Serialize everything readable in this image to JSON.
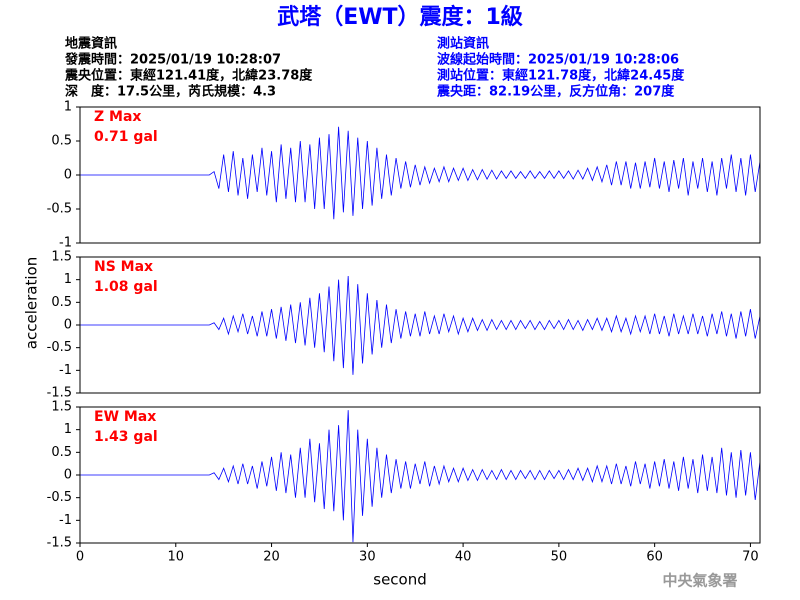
{
  "header": {
    "title": "武塔（EWT）震度：1級",
    "left": [
      "地震資訊",
      "發震時間：2025/01/19 10:28:07",
      "震央位置：東經121.41度，北緯23.78度",
      "深　度：17.5公里，芮氏規模：4.3"
    ],
    "right": [
      "測站資訊",
      "波線起始時間：2025/01/19 10:28:06",
      "測站位置：東經121.78度，北緯24.45度",
      "震央距：82.19公里，反方位角：207度"
    ]
  },
  "footer": "中央氣象署",
  "chart_data": [
    {
      "type": "line",
      "annotation": [
        "Z Max",
        "0.71 gal"
      ],
      "color": "#0000ff",
      "xlim": [
        0,
        71
      ],
      "ylim": [
        -1,
        1
      ],
      "yticks": [
        -1,
        -0.5,
        0,
        0.5,
        1
      ],
      "x": [
        0,
        0.5,
        1,
        1.5,
        2,
        2.5,
        3,
        3.5,
        4,
        4.5,
        5,
        5.5,
        6,
        6.5,
        7,
        7.5,
        8,
        8.5,
        9,
        9.5,
        10,
        10.5,
        11,
        11.5,
        12,
        12.5,
        13,
        13.5,
        14,
        14.5,
        15,
        15.5,
        16,
        16.5,
        17,
        17.5,
        18,
        18.5,
        19,
        19.5,
        20,
        20.5,
        21,
        21.5,
        22,
        22.5,
        23,
        23.5,
        24,
        24.5,
        25,
        25.5,
        26,
        26.5,
        27,
        27.5,
        28,
        28.5,
        29,
        29.5,
        30,
        30.5,
        31,
        31.5,
        32,
        32.5,
        33,
        33.5,
        34,
        34.5,
        35,
        35.5,
        36,
        36.5,
        37,
        37.5,
        38,
        38.5,
        39,
        39.5,
        40,
        40.5,
        41,
        41.5,
        42,
        42.5,
        43,
        43.5,
        44,
        44.5,
        45,
        45.5,
        46,
        46.5,
        47,
        47.5,
        48,
        48.5,
        49,
        49.5,
        50,
        50.5,
        51,
        51.5,
        52,
        52.5,
        53,
        53.5,
        54,
        54.5,
        55,
        55.5,
        56,
        56.5,
        57,
        57.5,
        58,
        58.5,
        59,
        59.5,
        60,
        60.5,
        61,
        61.5,
        62,
        62.5,
        63,
        63.5,
        64,
        64.5,
        65,
        65.5,
        66,
        66.5,
        67,
        67.5,
        68,
        68.5,
        69,
        69.5,
        70,
        70.5,
        71
      ],
      "values": [
        0,
        0,
        0,
        0,
        0,
        0,
        0,
        0,
        0,
        0,
        0,
        0,
        0,
        0,
        0,
        0,
        0,
        0,
        0,
        0,
        0,
        0,
        0,
        0,
        0,
        0,
        0,
        0,
        0.05,
        -0.2,
        0.3,
        -0.25,
        0.35,
        -0.3,
        0.25,
        -0.35,
        0.3,
        -0.25,
        0.4,
        -0.3,
        0.35,
        -0.4,
        0.45,
        -0.35,
        0.4,
        -0.4,
        0.5,
        -0.4,
        0.45,
        -0.5,
        0.55,
        -0.5,
        0.6,
        -0.65,
        0.71,
        -0.55,
        0.65,
        -0.6,
        0.55,
        -0.5,
        0.5,
        -0.45,
        0.4,
        -0.35,
        0.3,
        -0.3,
        0.25,
        -0.2,
        0.2,
        -0.18,
        0.15,
        -0.15,
        0.12,
        -0.12,
        0.1,
        -0.1,
        0.12,
        -0.1,
        0.1,
        -0.08,
        0.1,
        -0.08,
        0.08,
        -0.07,
        0.08,
        -0.06,
        0.07,
        -0.06,
        0.06,
        -0.05,
        0.06,
        -0.05,
        0.05,
        -0.05,
        0.06,
        -0.05,
        0.05,
        -0.05,
        0.06,
        -0.05,
        0.06,
        -0.05,
        0.06,
        -0.06,
        0.07,
        -0.06,
        0.1,
        -0.08,
        0.12,
        -0.1,
        0.15,
        -0.15,
        0.2,
        -0.15,
        0.2,
        -0.2,
        0.18,
        -0.2,
        0.2,
        -0.18,
        0.25,
        -0.2,
        0.2,
        -0.25,
        0.22,
        -0.2,
        0.25,
        -0.3,
        0.2,
        -0.2,
        0.25,
        -0.25,
        0.2,
        -0.3,
        0.25,
        -0.2,
        0.3,
        -0.25,
        0.25,
        -0.3,
        0.3,
        -0.25,
        0.2
      ]
    },
    {
      "type": "line",
      "annotation": [
        "NS Max",
        "1.08 gal"
      ],
      "color": "#0000ff",
      "xlim": [
        0,
        71
      ],
      "ylim": [
        -1.5,
        1.5
      ],
      "yticks": [
        -1.5,
        -1,
        -0.5,
        0,
        0.5,
        1,
        1.5
      ],
      "ylabel": "acceleration",
      "x": [
        0,
        0.5,
        1,
        1.5,
        2,
        2.5,
        3,
        3.5,
        4,
        4.5,
        5,
        5.5,
        6,
        6.5,
        7,
        7.5,
        8,
        8.5,
        9,
        9.5,
        10,
        10.5,
        11,
        11.5,
        12,
        12.5,
        13,
        13.5,
        14,
        14.5,
        15,
        15.5,
        16,
        16.5,
        17,
        17.5,
        18,
        18.5,
        19,
        19.5,
        20,
        20.5,
        21,
        21.5,
        22,
        22.5,
        23,
        23.5,
        24,
        24.5,
        25,
        25.5,
        26,
        26.5,
        27,
        27.5,
        28,
        28.5,
        29,
        29.5,
        30,
        30.5,
        31,
        31.5,
        32,
        32.5,
        33,
        33.5,
        34,
        34.5,
        35,
        35.5,
        36,
        36.5,
        37,
        37.5,
        38,
        38.5,
        39,
        39.5,
        40,
        40.5,
        41,
        41.5,
        42,
        42.5,
        43,
        43.5,
        44,
        44.5,
        45,
        45.5,
        46,
        46.5,
        47,
        47.5,
        48,
        48.5,
        49,
        49.5,
        50,
        50.5,
        51,
        51.5,
        52,
        52.5,
        53,
        53.5,
        54,
        54.5,
        55,
        55.5,
        56,
        56.5,
        57,
        57.5,
        58,
        58.5,
        59,
        59.5,
        60,
        60.5,
        61,
        61.5,
        62,
        62.5,
        63,
        63.5,
        64,
        64.5,
        65,
        65.5,
        66,
        66.5,
        67,
        67.5,
        68,
        68.5,
        69,
        69.5,
        70,
        70.5,
        71
      ],
      "values": [
        0,
        0,
        0,
        0,
        0,
        0,
        0,
        0,
        0,
        0,
        0,
        0,
        0,
        0,
        0,
        0,
        0,
        0,
        0,
        0,
        0,
        0,
        0,
        0,
        0,
        0,
        0,
        0,
        0.05,
        -0.1,
        0.15,
        -0.2,
        0.2,
        -0.15,
        0.25,
        -0.2,
        0.2,
        -0.25,
        0.3,
        -0.25,
        0.35,
        -0.3,
        0.4,
        -0.35,
        0.45,
        -0.4,
        0.5,
        -0.45,
        0.6,
        -0.5,
        0.7,
        -0.6,
        0.85,
        -0.8,
        1.0,
        -0.95,
        1.08,
        -1.1,
        0.9,
        -0.85,
        0.7,
        -0.65,
        0.55,
        -0.5,
        0.45,
        -0.4,
        0.35,
        -0.3,
        0.3,
        -0.25,
        0.25,
        -0.25,
        0.3,
        -0.2,
        0.2,
        -0.2,
        0.25,
        -0.15,
        0.2,
        -0.2,
        0.15,
        -0.15,
        0.15,
        -0.12,
        0.12,
        -0.12,
        0.12,
        -0.1,
        0.1,
        -0.1,
        0.1,
        -0.1,
        0.1,
        -0.08,
        0.1,
        -0.1,
        0.08,
        -0.1,
        0.1,
        -0.08,
        0.1,
        -0.1,
        0.12,
        -0.1,
        0.1,
        -0.12,
        0.12,
        -0.1,
        0.15,
        -0.12,
        0.15,
        -0.15,
        0.2,
        -0.15,
        0.15,
        -0.2,
        0.2,
        -0.15,
        0.2,
        -0.2,
        0.25,
        -0.2,
        0.2,
        -0.25,
        0.25,
        -0.2,
        0.2,
        -0.2,
        0.25,
        -0.2,
        0.2,
        -0.25,
        0.25,
        -0.2,
        0.3,
        -0.25,
        0.25,
        -0.3,
        0.3,
        -0.25,
        0.35,
        -0.3,
        0.2
      ]
    },
    {
      "type": "line",
      "annotation": [
        "EW Max",
        "1.43 gal"
      ],
      "color": "#0000ff",
      "xlim": [
        0,
        71
      ],
      "ylim": [
        -1.5,
        1.5
      ],
      "yticks": [
        -1.5,
        -1,
        -0.5,
        0,
        0.5,
        1,
        1.5
      ],
      "xticks": [
        0,
        10,
        20,
        30,
        40,
        50,
        60,
        70
      ],
      "xlabel": "second",
      "x": [
        0,
        0.5,
        1,
        1.5,
        2,
        2.5,
        3,
        3.5,
        4,
        4.5,
        5,
        5.5,
        6,
        6.5,
        7,
        7.5,
        8,
        8.5,
        9,
        9.5,
        10,
        10.5,
        11,
        11.5,
        12,
        12.5,
        13,
        13.5,
        14,
        14.5,
        15,
        15.5,
        16,
        16.5,
        17,
        17.5,
        18,
        18.5,
        19,
        19.5,
        20,
        20.5,
        21,
        21.5,
        22,
        22.5,
        23,
        23.5,
        24,
        24.5,
        25,
        25.5,
        26,
        26.5,
        27,
        27.5,
        28,
        28.5,
        29,
        29.5,
        30,
        30.5,
        31,
        31.5,
        32,
        32.5,
        33,
        33.5,
        34,
        34.5,
        35,
        35.5,
        36,
        36.5,
        37,
        37.5,
        38,
        38.5,
        39,
        39.5,
        40,
        40.5,
        41,
        41.5,
        42,
        42.5,
        43,
        43.5,
        44,
        44.5,
        45,
        45.5,
        46,
        46.5,
        47,
        47.5,
        48,
        48.5,
        49,
        49.5,
        50,
        50.5,
        51,
        51.5,
        52,
        52.5,
        53,
        53.5,
        54,
        54.5,
        55,
        55.5,
        56,
        56.5,
        57,
        57.5,
        58,
        58.5,
        59,
        59.5,
        60,
        60.5,
        61,
        61.5,
        62,
        62.5,
        63,
        63.5,
        64,
        64.5,
        65,
        65.5,
        66,
        66.5,
        67,
        67.5,
        68,
        68.5,
        69,
        69.5,
        70,
        70.5,
        71
      ],
      "values": [
        0,
        0,
        0,
        0,
        0,
        0,
        0,
        0,
        0,
        0,
        0,
        0,
        0,
        0,
        0,
        0,
        0,
        0,
        0,
        0,
        0,
        0,
        0,
        0,
        0,
        0,
        0,
        0,
        0.05,
        -0.1,
        0.15,
        -0.15,
        0.2,
        -0.2,
        0.25,
        -0.2,
        0.2,
        -0.3,
        0.3,
        -0.25,
        0.4,
        -0.35,
        0.5,
        -0.4,
        0.45,
        -0.5,
        0.6,
        -0.5,
        0.8,
        -0.6,
        0.7,
        -0.75,
        1.0,
        -0.8,
        1.1,
        -1.0,
        1.43,
        -1.48,
        1.0,
        -0.9,
        0.8,
        -0.7,
        0.6,
        -0.5,
        0.45,
        -0.4,
        0.35,
        -0.3,
        0.3,
        -0.3,
        0.25,
        -0.2,
        0.3,
        -0.25,
        0.2,
        -0.2,
        0.2,
        -0.15,
        0.15,
        -0.15,
        0.15,
        -0.12,
        0.12,
        -0.12,
        0.12,
        -0.1,
        0.1,
        -0.1,
        0.12,
        -0.1,
        0.1,
        -0.1,
        0.1,
        -0.08,
        0.1,
        -0.1,
        0.1,
        -0.1,
        0.1,
        -0.08,
        0.1,
        -0.1,
        0.12,
        -0.1,
        0.15,
        -0.12,
        0.15,
        -0.15,
        0.2,
        -0.15,
        0.2,
        -0.2,
        0.25,
        -0.2,
        0.2,
        -0.25,
        0.3,
        -0.2,
        0.25,
        -0.3,
        0.3,
        -0.25,
        0.35,
        -0.3,
        0.3,
        -0.35,
        0.4,
        -0.3,
        0.35,
        -0.4,
        0.45,
        -0.35,
        0.4,
        -0.4,
        0.6,
        -0.45,
        0.5,
        -0.5,
        0.55,
        -0.45,
        0.5,
        -0.55,
        0.3
      ]
    }
  ]
}
